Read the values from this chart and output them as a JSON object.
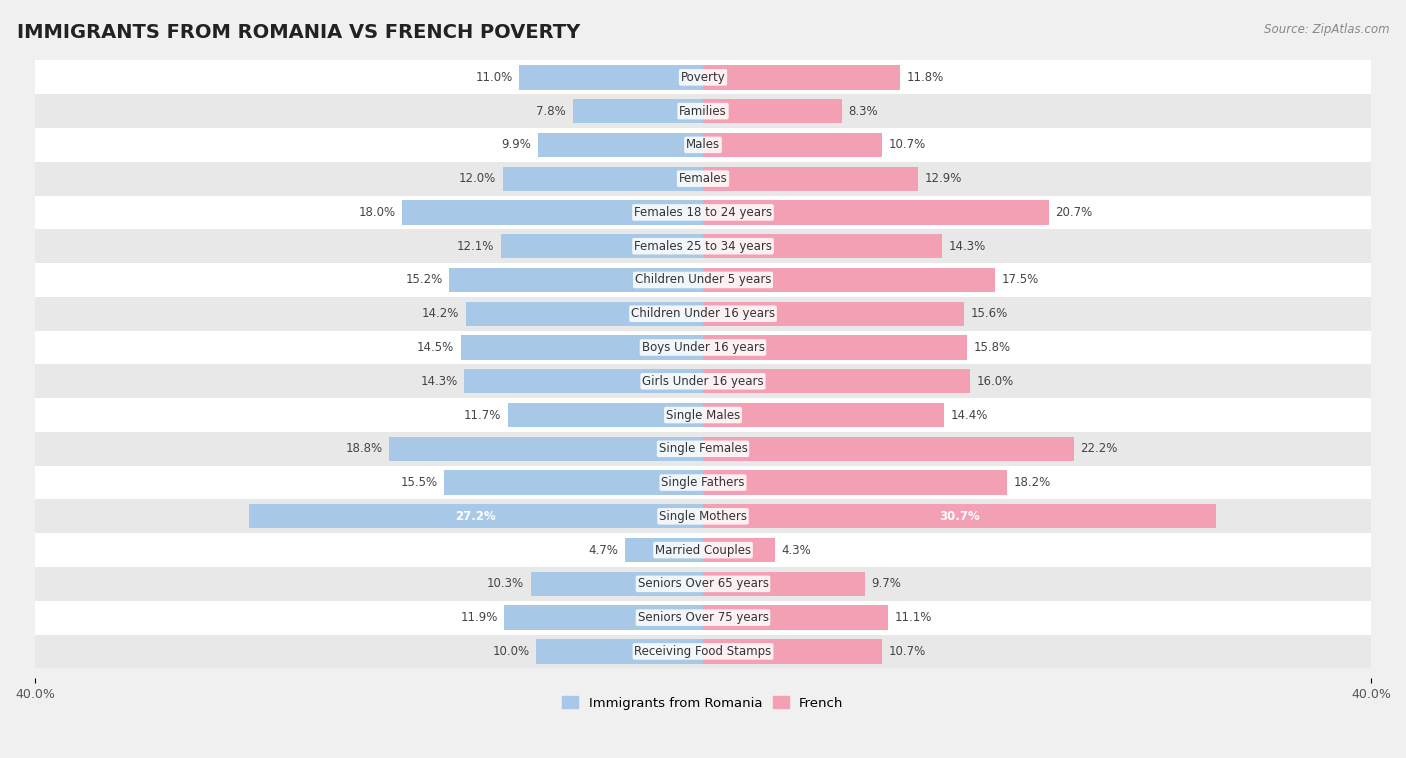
{
  "title": "IMMIGRANTS FROM ROMANIA VS FRENCH POVERTY",
  "source": "Source: ZipAtlas.com",
  "categories": [
    "Poverty",
    "Families",
    "Males",
    "Females",
    "Females 18 to 24 years",
    "Females 25 to 34 years",
    "Children Under 5 years",
    "Children Under 16 years",
    "Boys Under 16 years",
    "Girls Under 16 years",
    "Single Males",
    "Single Females",
    "Single Fathers",
    "Single Mothers",
    "Married Couples",
    "Seniors Over 65 years",
    "Seniors Over 75 years",
    "Receiving Food Stamps"
  ],
  "romania_values": [
    11.0,
    7.8,
    9.9,
    12.0,
    18.0,
    12.1,
    15.2,
    14.2,
    14.5,
    14.3,
    11.7,
    18.8,
    15.5,
    27.2,
    4.7,
    10.3,
    11.9,
    10.0
  ],
  "french_values": [
    11.8,
    8.3,
    10.7,
    12.9,
    20.7,
    14.3,
    17.5,
    15.6,
    15.8,
    16.0,
    14.4,
    22.2,
    18.2,
    30.7,
    4.3,
    9.7,
    11.1,
    10.7
  ],
  "romania_color": "#a8c8e8",
  "french_color": "#f4a0b4",
  "background_color": "#f0f0f0",
  "row_color_even": "#ffffff",
  "row_color_odd": "#e8e8e8",
  "axis_max": 40.0,
  "legend_romania": "Immigrants from Romania",
  "legend_french": "French",
  "title_fontsize": 14,
  "label_fontsize": 8.5,
  "value_fontsize": 8.5
}
